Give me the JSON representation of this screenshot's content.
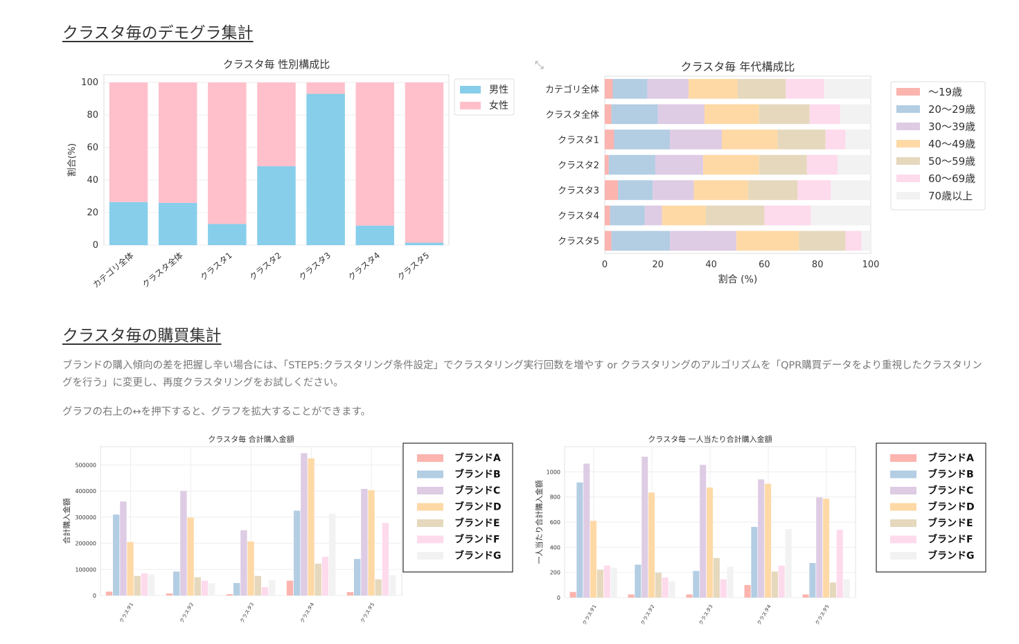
{
  "demographics": {
    "title": "クラスタ毎のデモグラ集計",
    "expand_icon": "expand-arrows-icon"
  },
  "purchase": {
    "title": "クラスタ毎の購買集計",
    "desc1": "ブランドの購入傾向の差を把握し辛い場合には、「STEP5:クラスタリング条件設定」でクラスタリング実行回数を増やす or クラスタリングのアルゴリズムを「QPR購買データをより重視したクラスタリングを行う」に変更し、再度クラスタリングをお試しください。",
    "desc2": "グラフの右上の↔を押下すると、グラフを拡大することができます。"
  },
  "chart_data": [
    {
      "type": "bar",
      "stacked": true,
      "title": "クラスタ毎 性別構成比",
      "xlabel": "",
      "ylabel": "割合(%)",
      "ylim": [
        0,
        100
      ],
      "yticks": [
        0,
        20,
        40,
        60,
        80,
        100
      ],
      "categories": [
        "カテゴリ全体",
        "クラスタ全体",
        "クラスタ1",
        "クラスタ2",
        "クラスタ3",
        "クラスタ4",
        "クラスタ5"
      ],
      "series": [
        {
          "name": "男性",
          "color": "#87ceeb",
          "values": [
            26.5,
            26,
            13,
            48.5,
            93,
            12,
            1.5
          ]
        },
        {
          "name": "女性",
          "color": "#ffc0cb",
          "values": [
            73.5,
            74,
            87,
            51.5,
            7,
            88,
            98.5
          ]
        }
      ],
      "legend": "top-right-outside"
    },
    {
      "type": "bar",
      "orientation": "horizontal",
      "stacked": true,
      "title": "クラスタ毎 年代構成比",
      "xlabel": "割合 (%)",
      "ylabel": "",
      "xlim": [
        0,
        100
      ],
      "xticks": [
        0,
        20,
        40,
        60,
        80,
        100
      ],
      "categories": [
        "カテゴリ全体",
        "クラスタ全体",
        "クラスタ1",
        "クラスタ2",
        "クラスタ3",
        "クラスタ4",
        "クラスタ5"
      ],
      "series": [
        {
          "name": "～19歳",
          "color": "#fbb4ae",
          "values": [
            3,
            2.5,
            3.5,
            1.5,
            5,
            2,
            2.5
          ]
        },
        {
          "name": "20～29歳",
          "color": "#b3cde3",
          "values": [
            13,
            17.5,
            21,
            17.5,
            13,
            13,
            22
          ]
        },
        {
          "name": "30～39歳",
          "color": "#decbe4",
          "values": [
            15.5,
            17.5,
            19.5,
            18,
            15.5,
            6.5,
            25
          ]
        },
        {
          "name": "40～49歳",
          "color": "#fed9a6",
          "values": [
            18.5,
            20.5,
            21,
            21,
            20.5,
            16.5,
            23.5
          ]
        },
        {
          "name": "50～59歳",
          "color": "#e5d8bd",
          "values": [
            18,
            19,
            18,
            18,
            18.5,
            22,
            17.5
          ]
        },
        {
          "name": "60～69歳",
          "color": "#fddaec",
          "values": [
            14.5,
            11.5,
            7.5,
            11.5,
            12.5,
            17.5,
            6
          ]
        },
        {
          "name": "70歳以上",
          "color": "#f2f2f2",
          "values": [
            17.5,
            11.5,
            9.5,
            12.5,
            15,
            22.5,
            3.5
          ]
        }
      ],
      "legend": "right-outside"
    },
    {
      "type": "bar",
      "title": "クラスタ毎 合計購入金額",
      "xlabel": "",
      "ylabel": "合計購入金額",
      "ylim": [
        0,
        570000
      ],
      "yticks": [
        0,
        100000,
        200000,
        300000,
        400000,
        500000
      ],
      "categories": [
        "クラスタ1",
        "クラスタ2",
        "クラスタ3",
        "クラスタ4",
        "クラスタ5"
      ],
      "series": [
        {
          "name": "ブランドA",
          "color": "#fbb4ae",
          "values": [
            15000,
            8000,
            5000,
            57000,
            13000
          ]
        },
        {
          "name": "ブランドB",
          "color": "#b3cde3",
          "values": [
            310000,
            92000,
            48000,
            325000,
            140000
          ]
        },
        {
          "name": "ブランドC",
          "color": "#decbe4",
          "values": [
            360000,
            400000,
            250000,
            545000,
            408000
          ]
        },
        {
          "name": "ブランドD",
          "color": "#fed9a6",
          "values": [
            205000,
            298000,
            207000,
            525000,
            403000
          ]
        },
        {
          "name": "ブランドE",
          "color": "#e5d8bd",
          "values": [
            75000,
            70000,
            75000,
            122000,
            62000
          ]
        },
        {
          "name": "ブランドF",
          "color": "#fddaec",
          "values": [
            85000,
            57000,
            32000,
            148000,
            278000
          ]
        },
        {
          "name": "ブランドG",
          "color": "#f2f2f2",
          "values": [
            80000,
            47000,
            58000,
            313000,
            78000
          ]
        }
      ],
      "legend": "top-right"
    },
    {
      "type": "bar",
      "title": "クラスタ毎 一人当たり合計購入金額",
      "xlabel": "",
      "ylabel": "一人当たり合計購入金額",
      "ylim": [
        0,
        1200
      ],
      "yticks": [
        0,
        200,
        400,
        600,
        800,
        1000
      ],
      "categories": [
        "クラスタ1",
        "クラスタ2",
        "クラスタ3",
        "クラスタ4",
        "クラスタ5"
      ],
      "series": [
        {
          "name": "ブランドA",
          "color": "#fbb4ae",
          "values": [
            45,
            25,
            25,
            100,
            25
          ]
        },
        {
          "name": "ブランドB",
          "color": "#b3cde3",
          "values": [
            915,
            262,
            212,
            562,
            275
          ]
        },
        {
          "name": "ブランドC",
          "color": "#decbe4",
          "values": [
            1065,
            1120,
            1055,
            940,
            797
          ]
        },
        {
          "name": "ブランドD",
          "color": "#fed9a6",
          "values": [
            610,
            835,
            875,
            905,
            787
          ]
        },
        {
          "name": "ブランドE",
          "color": "#e5d8bd",
          "values": [
            222,
            197,
            315,
            207,
            120
          ]
        },
        {
          "name": "ブランドF",
          "color": "#fddaec",
          "values": [
            255,
            160,
            145,
            255,
            540
          ]
        },
        {
          "name": "ブランドG",
          "color": "#f2f2f2",
          "values": [
            238,
            130,
            245,
            545,
            145
          ]
        }
      ],
      "legend": "top-right"
    }
  ]
}
